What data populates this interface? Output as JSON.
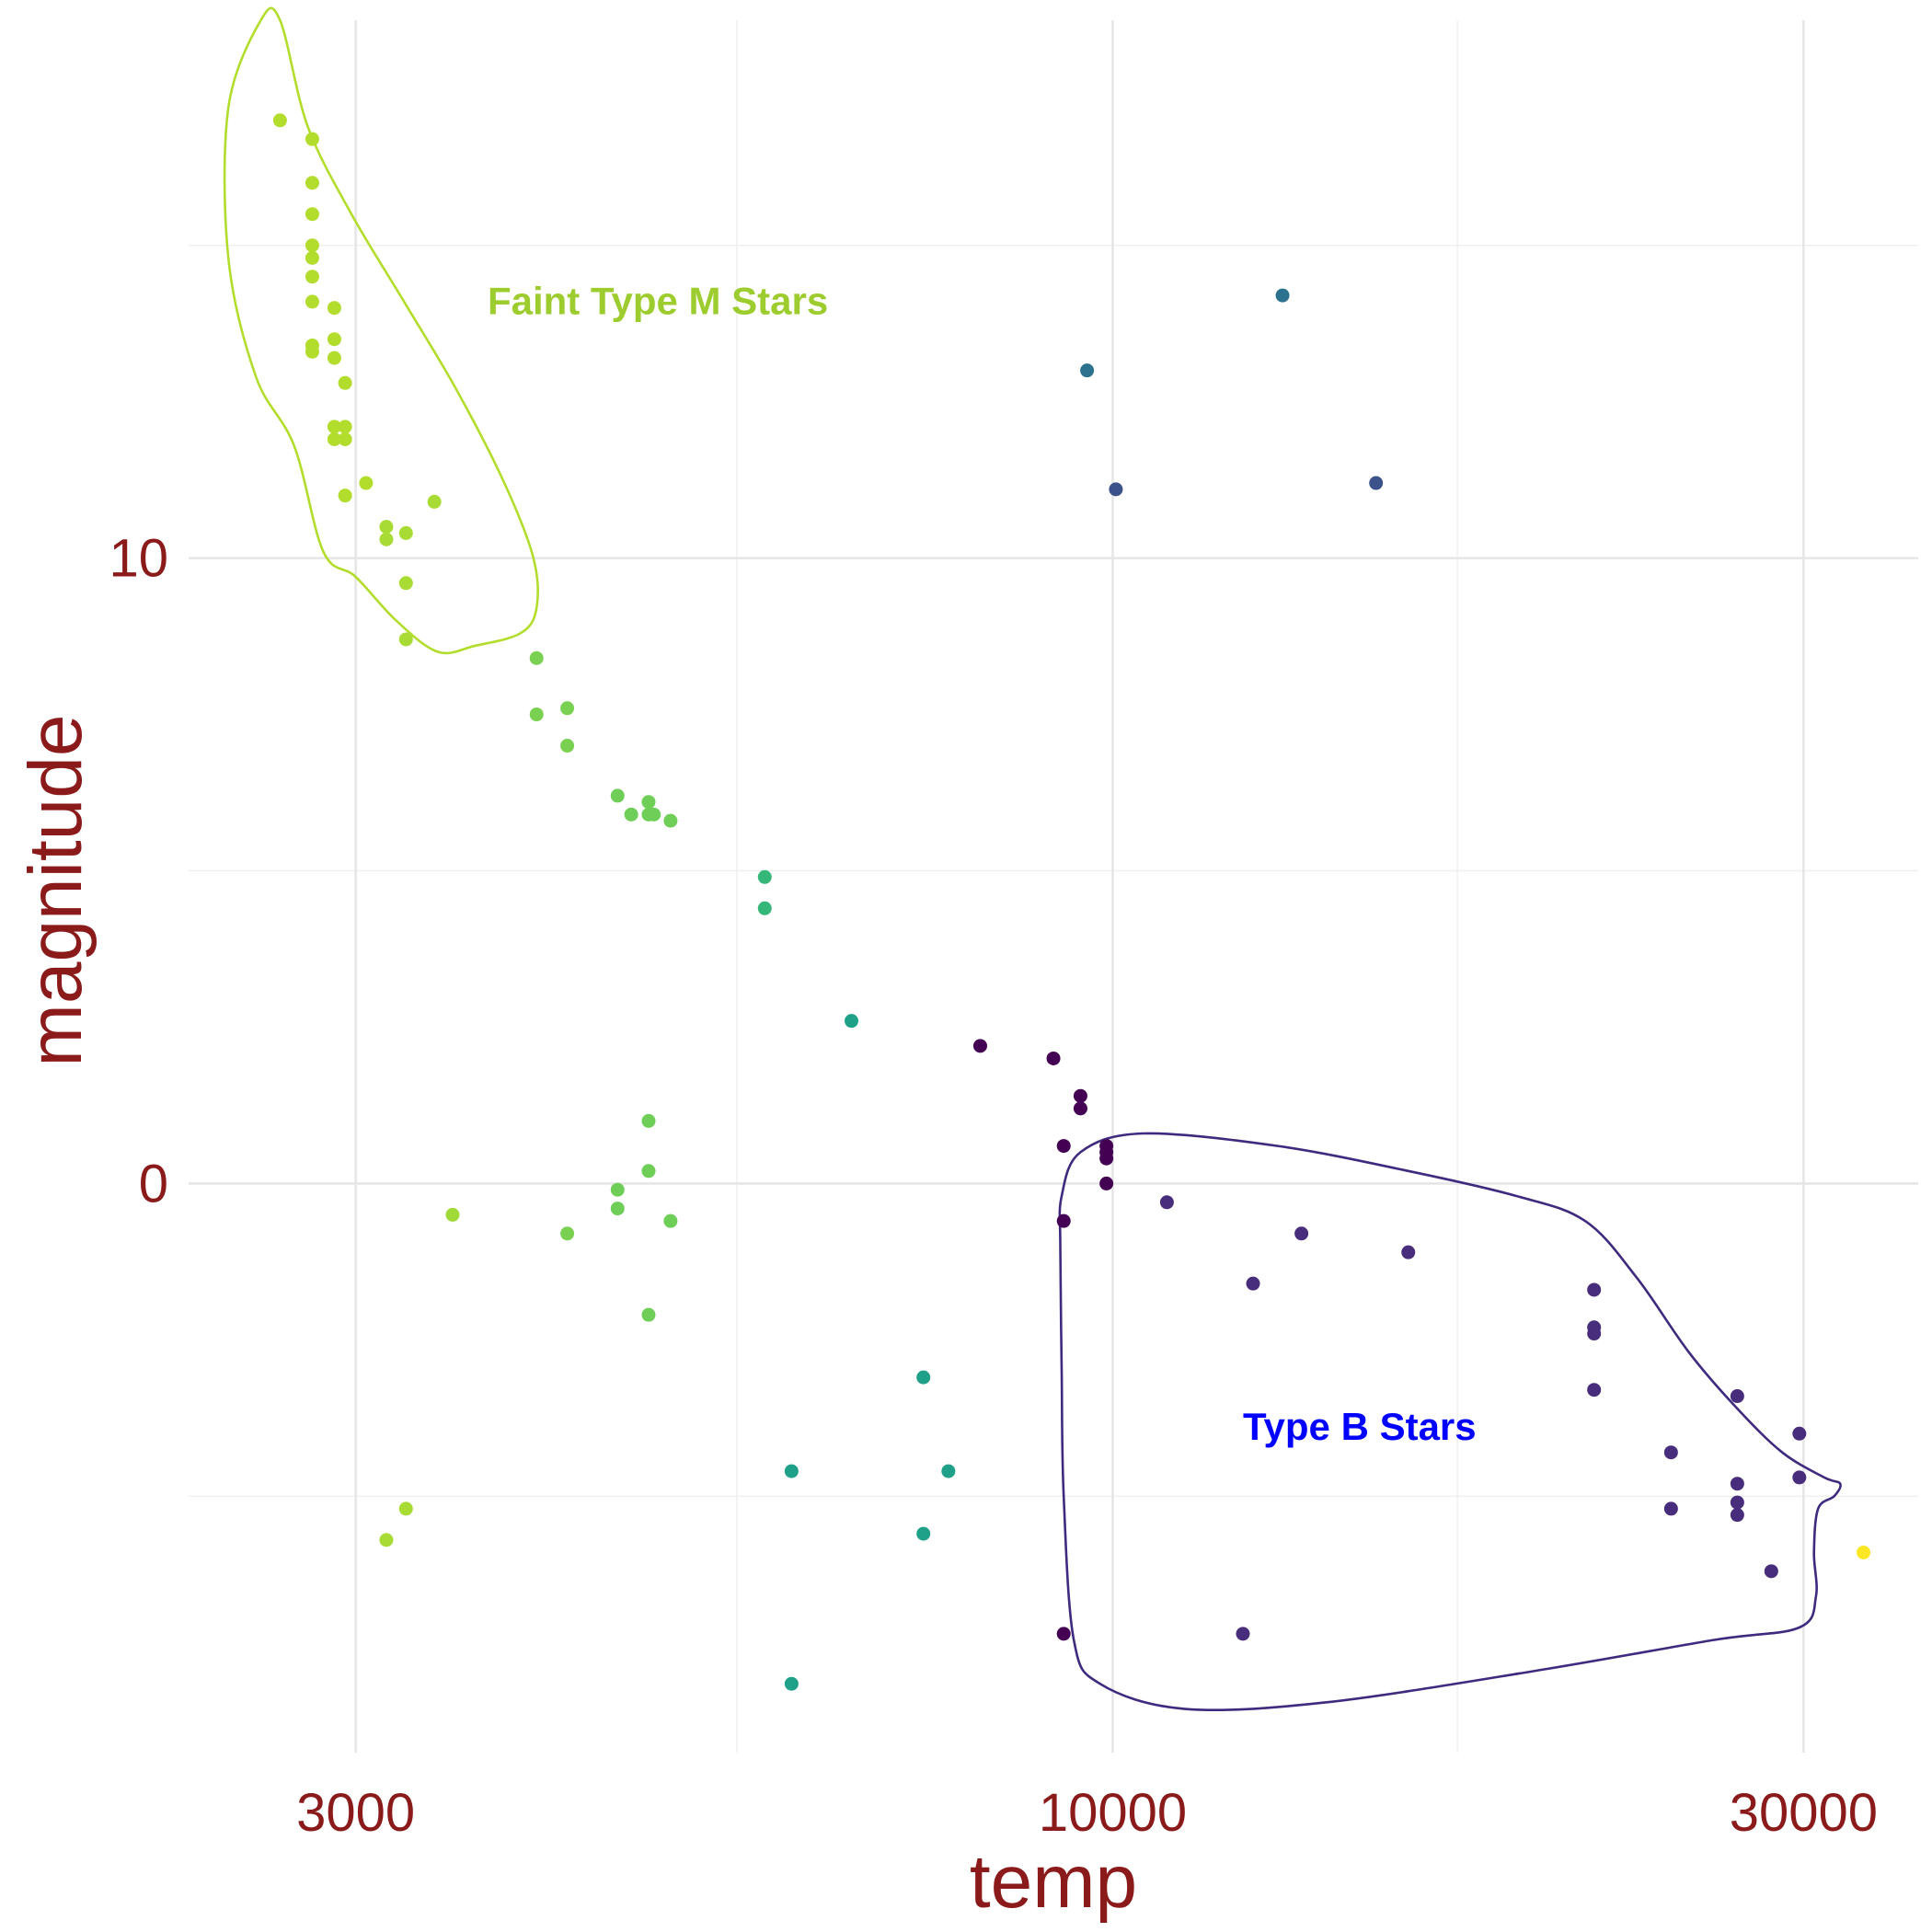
{
  "chart_data": {
    "type": "scatter",
    "xlabel": "temp",
    "ylabel": "magnitude",
    "x_scale": "log10",
    "xlim": [
      2300,
      36000
    ],
    "ylim": [
      -9.1,
      18.6
    ],
    "x_ticks": [
      3000,
      10000,
      30000
    ],
    "x_tick_labels": [
      "3000",
      "10000",
      "30000"
    ],
    "x_minor_ticks": [
      5500,
      17300
    ],
    "y_ticks": [
      0,
      10
    ],
    "y_tick_labels": [
      "0",
      "10"
    ],
    "y_minor_ticks": [
      -5,
      5,
      15
    ],
    "grid": true,
    "legend": "none",
    "color_scale": "viridis",
    "annotations": [
      {
        "text": "Faint Type M Stars",
        "x": 3700,
        "y": 13.9,
        "color": "#9dcc2e"
      },
      {
        "text": "Type B Stars",
        "x": 12300,
        "y": -4.1,
        "color": "#0000ff"
      }
    ],
    "outlines": [
      {
        "name": "Faint Type M Stars outline",
        "color": "#b2dd2c",
        "points": [
          [
            2580,
            18.6
          ],
          [
            2450,
            17.2
          ],
          [
            2450,
            14.8
          ],
          [
            2560,
            12.9
          ],
          [
            2720,
            11.8
          ],
          [
            2850,
            10.1
          ],
          [
            3000,
            9.7
          ],
          [
            3200,
            9
          ],
          [
            3420,
            8.5
          ],
          [
            3630,
            8.6
          ],
          [
            3900,
            8.8
          ],
          [
            4000,
            9.2
          ],
          [
            3980,
            10
          ],
          [
            3800,
            11.2
          ],
          [
            3520,
            12.7
          ],
          [
            3240,
            14.1
          ],
          [
            2980,
            15.5
          ],
          [
            2780,
            16.9
          ],
          [
            2660,
            18.6
          ]
        ]
      },
      {
        "name": "Type B Stars outline",
        "color": "#3f2a7f",
        "points": [
          [
            9200,
            -1
          ],
          [
            9220,
            -0.2
          ],
          [
            9500,
            0.5
          ],
          [
            10500,
            0.8
          ],
          [
            13000,
            0.6
          ],
          [
            16000,
            0.2
          ],
          [
            19000,
            -0.2
          ],
          [
            21200,
            -0.6
          ],
          [
            23000,
            -1.5
          ],
          [
            25000,
            -2.7
          ],
          [
            27000,
            -3.6
          ],
          [
            29000,
            -4.3
          ],
          [
            31000,
            -4.7
          ],
          [
            31800,
            -4.8
          ],
          [
            31500,
            -5
          ],
          [
            30700,
            -5.2
          ],
          [
            30500,
            -5.9
          ],
          [
            30600,
            -6.6
          ],
          [
            29800,
            -7.1
          ],
          [
            26000,
            -7.3
          ],
          [
            19500,
            -7.8
          ],
          [
            14000,
            -8.3
          ],
          [
            11200,
            -8.4
          ],
          [
            9800,
            -8.0
          ],
          [
            9400,
            -7.3
          ],
          [
            9250,
            -5
          ],
          [
            9220,
            -3
          ]
        ]
      }
    ],
    "points": [
      {
        "x": 2660,
        "y": 17.0,
        "c": "#b2dd2c"
      },
      {
        "x": 2800,
        "y": 16.7,
        "c": "#b2dd2c"
      },
      {
        "x": 2800,
        "y": 16.0,
        "c": "#b2dd2c"
      },
      {
        "x": 2800,
        "y": 15.5,
        "c": "#b2dd2c"
      },
      {
        "x": 2800,
        "y": 15.0,
        "c": "#b2dd2c"
      },
      {
        "x": 2800,
        "y": 14.8,
        "c": "#b2dd2c"
      },
      {
        "x": 2800,
        "y": 14.5,
        "c": "#b2dd2c"
      },
      {
        "x": 2800,
        "y": 14.1,
        "c": "#b2dd2c"
      },
      {
        "x": 2800,
        "y": 13.4,
        "c": "#b2dd2c"
      },
      {
        "x": 2800,
        "y": 13.3,
        "c": "#b2dd2c"
      },
      {
        "x": 2900,
        "y": 14.0,
        "c": "#b2dd2c"
      },
      {
        "x": 2900,
        "y": 13.5,
        "c": "#b2dd2c"
      },
      {
        "x": 2900,
        "y": 13.2,
        "c": "#b2dd2c"
      },
      {
        "x": 2900,
        "y": 12.1,
        "c": "#b2dd2c"
      },
      {
        "x": 2900,
        "y": 11.9,
        "c": "#b2dd2c"
      },
      {
        "x": 2950,
        "y": 12.8,
        "c": "#b2dd2c"
      },
      {
        "x": 2950,
        "y": 12.1,
        "c": "#b2dd2c"
      },
      {
        "x": 2950,
        "y": 11.9,
        "c": "#b2dd2c"
      },
      {
        "x": 2950,
        "y": 11.0,
        "c": "#b2dd2c"
      },
      {
        "x": 3050,
        "y": 11.2,
        "c": "#b2dd2c"
      },
      {
        "x": 3150,
        "y": 10.5,
        "c": "#a8db34"
      },
      {
        "x": 3150,
        "y": 10.3,
        "c": "#a8db34"
      },
      {
        "x": 3250,
        "y": 10.4,
        "c": "#a8db34"
      },
      {
        "x": 3250,
        "y": 9.6,
        "c": "#a8db34"
      },
      {
        "x": 3250,
        "y": 8.7,
        "c": "#a8db34"
      },
      {
        "x": 3400,
        "y": 10.9,
        "c": "#a8db34"
      },
      {
        "x": 3150,
        "y": -5.7,
        "c": "#a8db34"
      },
      {
        "x": 3250,
        "y": -5.2,
        "c": "#a8db34"
      },
      {
        "x": 3500,
        "y": -0.5,
        "c": "#a0da39"
      },
      {
        "x": 4000,
        "y": 8.4,
        "c": "#7ad151"
      },
      {
        "x": 4000,
        "y": 7.5,
        "c": "#7ad151"
      },
      {
        "x": 4200,
        "y": 7.6,
        "c": "#7ad151"
      },
      {
        "x": 4200,
        "y": 7.0,
        "c": "#7ad151"
      },
      {
        "x": 4200,
        "y": -0.8,
        "c": "#7ad151"
      },
      {
        "x": 4550,
        "y": 6.2,
        "c": "#6ece58"
      },
      {
        "x": 4650,
        "y": 5.9,
        "c": "#6ece58"
      },
      {
        "x": 4780,
        "y": 6.1,
        "c": "#6ece58"
      },
      {
        "x": 4780,
        "y": 5.9,
        "c": "#6ece58"
      },
      {
        "x": 4820,
        "y": 5.9,
        "c": "#6ece58"
      },
      {
        "x": 4950,
        "y": 5.8,
        "c": "#6ece58"
      },
      {
        "x": 4550,
        "y": -0.1,
        "c": "#6ece58"
      },
      {
        "x": 4550,
        "y": -0.4,
        "c": "#6ece58"
      },
      {
        "x": 4780,
        "y": 1.0,
        "c": "#6ece58"
      },
      {
        "x": 4780,
        "y": 0.2,
        "c": "#6ece58"
      },
      {
        "x": 4950,
        "y": -0.6,
        "c": "#6ece58"
      },
      {
        "x": 4780,
        "y": -2.1,
        "c": "#6ece58"
      },
      {
        "x": 5750,
        "y": 4.9,
        "c": "#35b779"
      },
      {
        "x": 5750,
        "y": 4.4,
        "c": "#35b779"
      },
      {
        "x": 6000,
        "y": -4.6,
        "c": "#1fa088"
      },
      {
        "x": 6000,
        "y": -8.0,
        "c": "#1fa088"
      },
      {
        "x": 6600,
        "y": 2.6,
        "c": "#1fa088"
      },
      {
        "x": 7400,
        "y": -3.1,
        "c": "#1fa088"
      },
      {
        "x": 7400,
        "y": -5.6,
        "c": "#1fa088"
      },
      {
        "x": 7700,
        "y": -4.6,
        "c": "#1fa088"
      },
      {
        "x": 8100,
        "y": 2.2,
        "c": "#440154"
      },
      {
        "x": 9100,
        "y": 2.0,
        "c": "#440154"
      },
      {
        "x": 9250,
        "y": 0.6,
        "c": "#440154"
      },
      {
        "x": 9250,
        "y": -0.6,
        "c": "#440154"
      },
      {
        "x": 9250,
        "y": -7.2,
        "c": "#440154"
      },
      {
        "x": 9500,
        "y": 1.4,
        "c": "#440154"
      },
      {
        "x": 9500,
        "y": 1.2,
        "c": "#440154"
      },
      {
        "x": 9900,
        "y": 0.6,
        "c": "#440154"
      },
      {
        "x": 9900,
        "y": 0.5,
        "c": "#440154"
      },
      {
        "x": 9900,
        "y": 0.4,
        "c": "#440154"
      },
      {
        "x": 9900,
        "y": 0.0,
        "c": "#440154"
      },
      {
        "x": 9600,
        "y": 13.0,
        "c": "#2c728e"
      },
      {
        "x": 13100,
        "y": 14.2,
        "c": "#2c728e"
      },
      {
        "x": 10050,
        "y": 11.1,
        "c": "#3b528b"
      },
      {
        "x": 15200,
        "y": 11.2,
        "c": "#3b528b"
      },
      {
        "x": 10900,
        "y": -0.3,
        "c": "#472d7b"
      },
      {
        "x": 12500,
        "y": -1.6,
        "c": "#472d7b"
      },
      {
        "x": 12300,
        "y": -7.2,
        "c": "#472d7b"
      },
      {
        "x": 13500,
        "y": -0.8,
        "c": "#472d7b"
      },
      {
        "x": 16000,
        "y": -1.1,
        "c": "#472d7b"
      },
      {
        "x": 21500,
        "y": -1.7,
        "c": "#472d7b"
      },
      {
        "x": 21500,
        "y": -2.3,
        "c": "#472d7b"
      },
      {
        "x": 21500,
        "y": -2.4,
        "c": "#472d7b"
      },
      {
        "x": 21500,
        "y": -3.3,
        "c": "#472d7b"
      },
      {
        "x": 24300,
        "y": -4.3,
        "c": "#472d7b"
      },
      {
        "x": 24300,
        "y": -5.2,
        "c": "#472d7b"
      },
      {
        "x": 27000,
        "y": -3.4,
        "c": "#472d7b"
      },
      {
        "x": 27000,
        "y": -4.8,
        "c": "#472d7b"
      },
      {
        "x": 27000,
        "y": -5.1,
        "c": "#472d7b"
      },
      {
        "x": 27000,
        "y": -5.3,
        "c": "#472d7b"
      },
      {
        "x": 28500,
        "y": -6.2,
        "c": "#472d7b"
      },
      {
        "x": 29800,
        "y": -4.0,
        "c": "#472d7b"
      },
      {
        "x": 29800,
        "y": -4.7,
        "c": "#472d7b"
      },
      {
        "x": 33000,
        "y": -5.9,
        "c": "#fde725"
      }
    ]
  }
}
